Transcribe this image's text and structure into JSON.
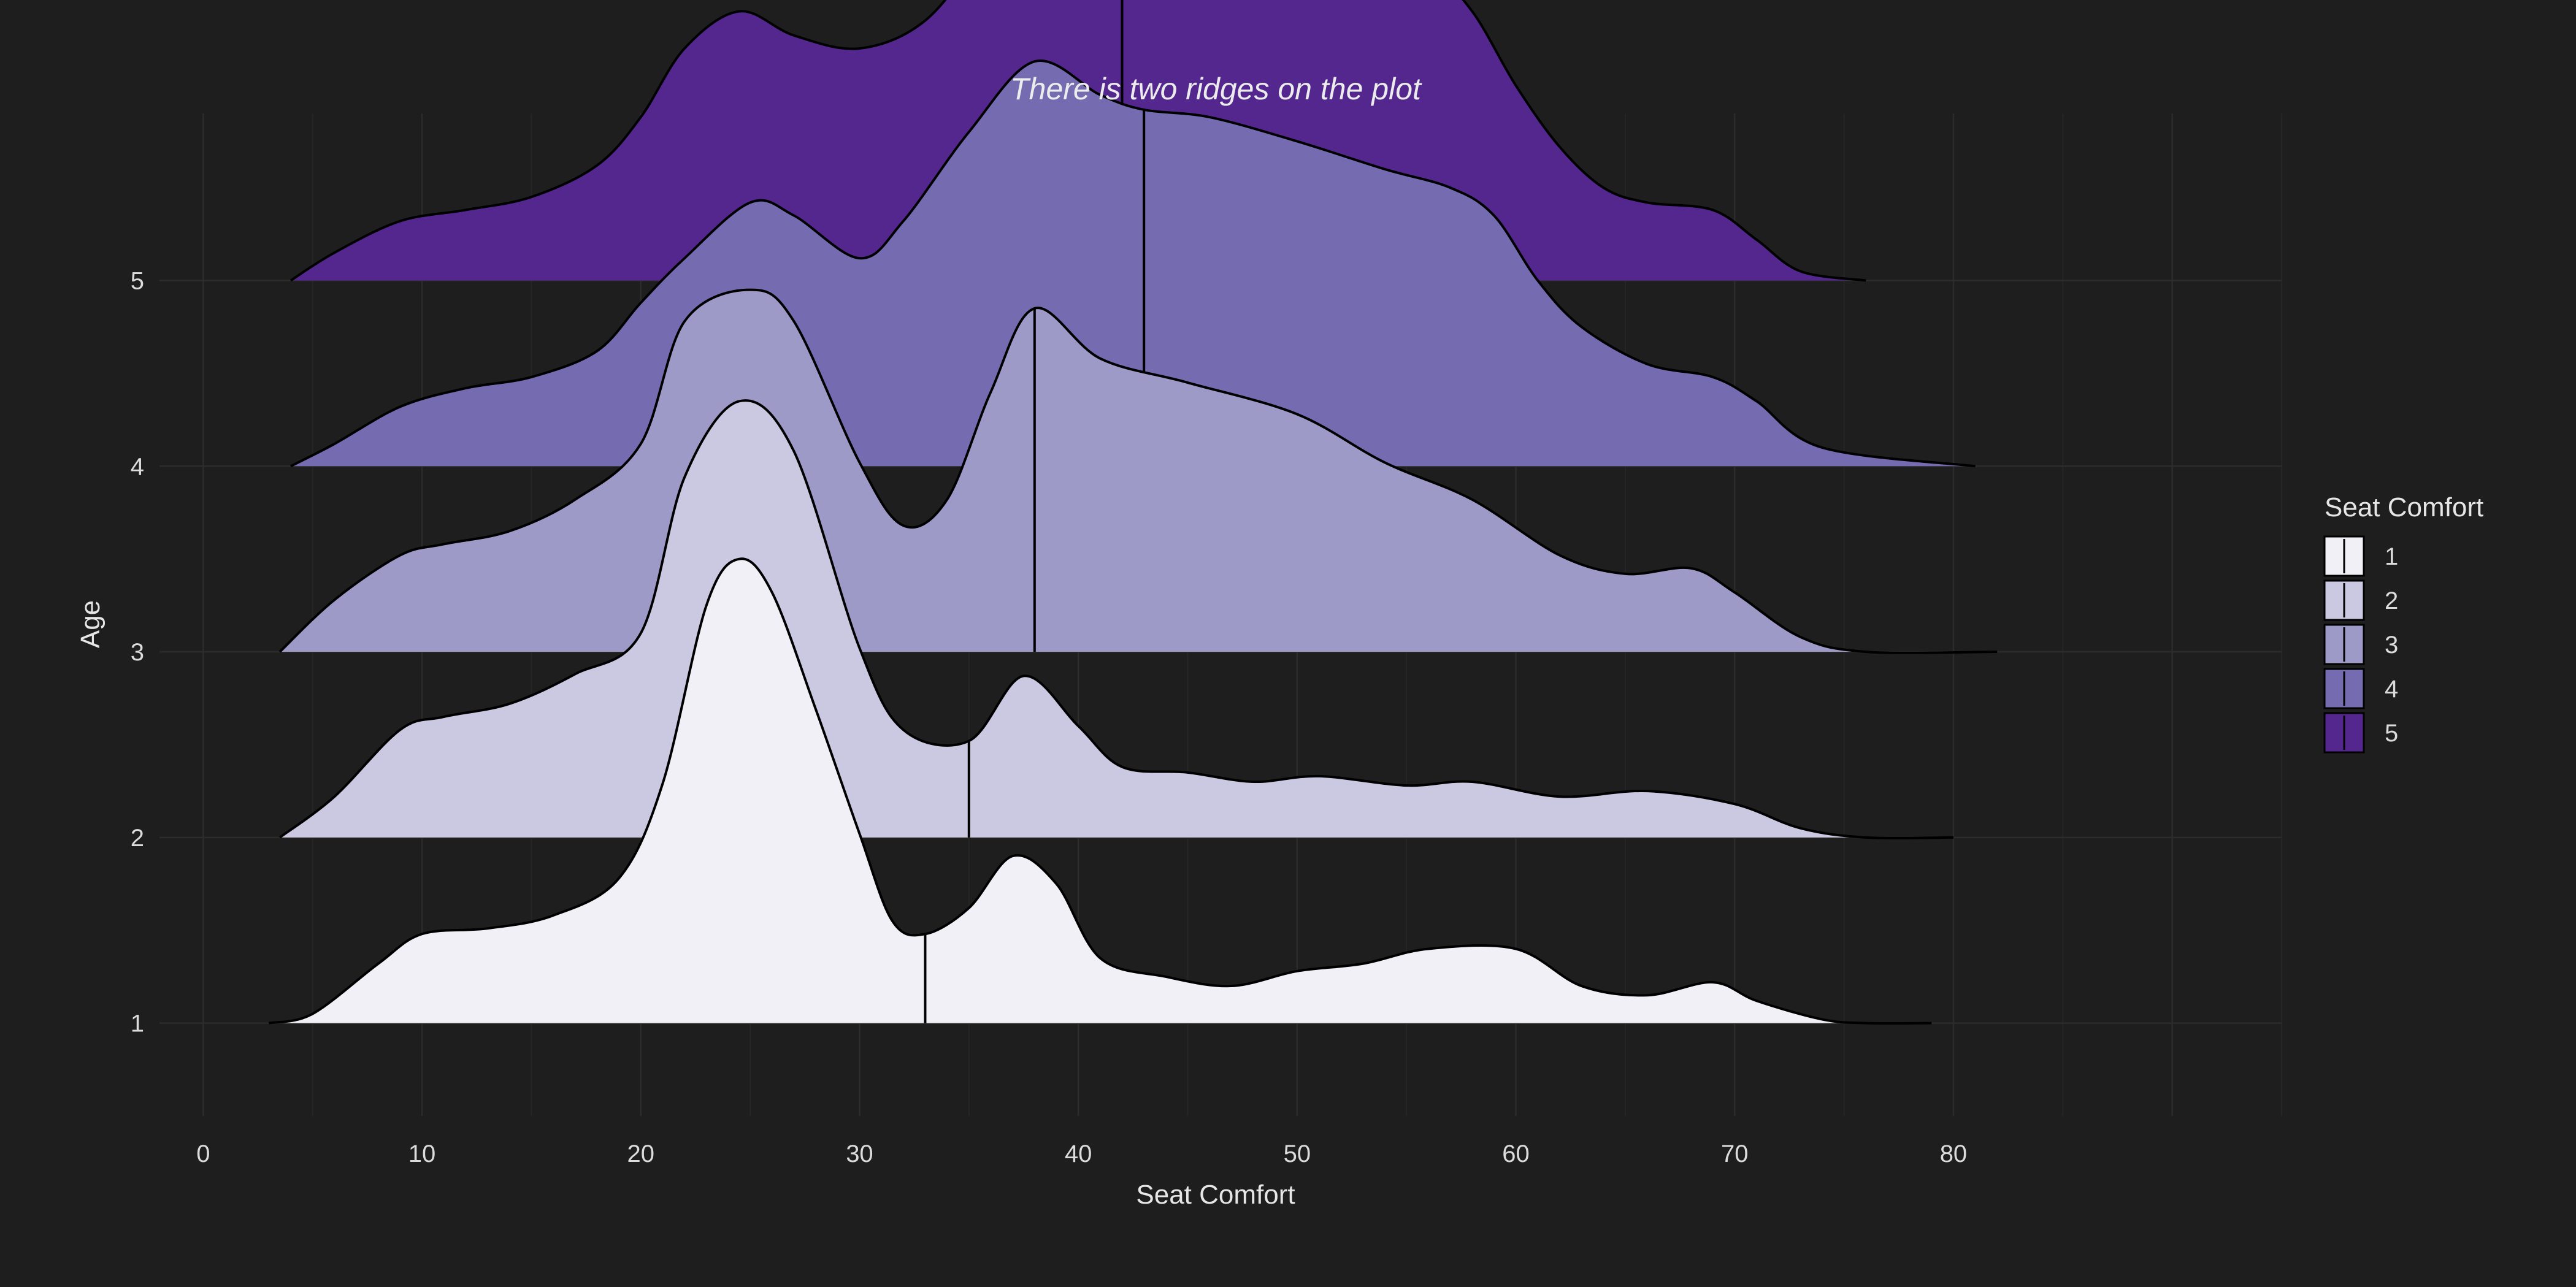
{
  "chart_data": {
    "type": "ridgeline",
    "title": "There is two ridges on the plot",
    "xlabel": "Seat Comfort",
    "ylabel": "Age",
    "xlim": [
      -2,
      95
    ],
    "x_ticks": [
      0,
      10,
      20,
      30,
      40,
      50,
      60,
      70,
      80
    ],
    "y_ticks": [
      1,
      2,
      3,
      4,
      5
    ],
    "ylim": [
      0.5,
      5.9
    ],
    "grid": true,
    "legend": {
      "title": "Seat Comfort",
      "position": "right",
      "entries": [
        "1",
        "2",
        "3",
        "4",
        "5"
      ]
    },
    "colors": [
      "#f1f0f7",
      "#cbc8e1",
      "#9e9ac8",
      "#756bb1",
      "#54278f"
    ],
    "outline_color": "#000000",
    "series": [
      {
        "name": "1",
        "baseline": 1,
        "median": 33,
        "x": [
          3,
          5,
          8,
          10,
          13,
          16,
          19,
          21,
          23,
          24.5,
          26,
          28,
          30,
          31.5,
          33,
          35,
          37,
          39,
          41,
          44,
          47,
          50,
          53,
          56,
          60,
          63,
          66,
          69,
          71,
          74,
          76,
          79
        ],
        "h": [
          0,
          0.05,
          0.32,
          0.48,
          0.51,
          0.58,
          0.78,
          1.29,
          2.25,
          2.5,
          2.32,
          1.69,
          1.02,
          0.55,
          0.48,
          0.62,
          0.9,
          0.75,
          0.35,
          0.25,
          0.2,
          0.28,
          0.32,
          0.4,
          0.4,
          0.2,
          0.15,
          0.22,
          0.12,
          0.02,
          0,
          0
        ]
      },
      {
        "name": "2",
        "baseline": 2,
        "median": 35,
        "x": [
          3.5,
          6,
          9,
          11,
          14,
          17,
          20,
          22,
          24.5,
          27,
          30,
          32,
          35,
          37.5,
          40,
          42,
          45,
          48,
          51,
          55,
          58,
          62,
          66,
          70,
          73,
          76,
          80
        ],
        "h": [
          0,
          0.22,
          0.58,
          0.65,
          0.72,
          0.88,
          1.1,
          1.94,
          2.35,
          2.08,
          1.02,
          0.58,
          0.52,
          0.87,
          0.6,
          0.38,
          0.35,
          0.3,
          0.33,
          0.28,
          0.3,
          0.22,
          0.25,
          0.18,
          0.05,
          0,
          0
        ]
      },
      {
        "name": "3",
        "baseline": 3,
        "median": 38,
        "x": [
          3.5,
          6,
          9,
          11,
          14,
          17,
          20,
          22,
          25,
          27,
          30,
          32,
          34,
          36,
          38,
          41,
          45,
          50,
          54,
          58,
          62,
          65,
          68,
          70,
          73,
          76,
          82
        ],
        "h": [
          0,
          0.28,
          0.52,
          0.58,
          0.65,
          0.82,
          1.12,
          1.78,
          1.95,
          1.78,
          1.02,
          0.68,
          0.82,
          1.4,
          1.85,
          1.58,
          1.45,
          1.28,
          1.02,
          0.82,
          0.52,
          0.42,
          0.45,
          0.32,
          0.08,
          0,
          0
        ]
      },
      {
        "name": "4",
        "baseline": 4,
        "median": 43,
        "x": [
          4,
          6,
          9,
          12,
          15,
          18,
          20,
          22,
          25,
          27,
          30,
          32,
          35,
          38,
          41,
          43,
          46,
          50,
          54,
          57,
          59,
          61,
          63,
          66,
          69,
          71,
          74,
          81
        ],
        "h": [
          0,
          0.12,
          0.32,
          0.42,
          0.48,
          0.62,
          0.88,
          1.12,
          1.42,
          1.35,
          1.12,
          1.32,
          1.8,
          2.18,
          2.0,
          1.92,
          1.88,
          1.75,
          1.6,
          1.5,
          1.35,
          1.0,
          0.75,
          0.55,
          0.48,
          0.35,
          0.1,
          0
        ]
      },
      {
        "name": "5",
        "baseline": 5,
        "median": 42,
        "x": [
          4,
          6,
          9,
          12,
          15,
          18,
          20,
          22,
          24.5,
          27,
          30,
          33,
          36,
          39,
          41,
          43,
          46,
          50,
          53,
          56,
          58,
          60,
          62,
          64,
          66,
          69,
          71,
          73,
          76
        ],
        "h": [
          0,
          0.15,
          0.32,
          0.38,
          0.45,
          0.62,
          0.88,
          1.25,
          1.45,
          1.32,
          1.25,
          1.4,
          1.82,
          2.15,
          2.2,
          2.13,
          2.08,
          1.92,
          1.78,
          1.68,
          1.45,
          1.05,
          0.72,
          0.5,
          0.42,
          0.38,
          0.22,
          0.05,
          0
        ]
      }
    ]
  }
}
